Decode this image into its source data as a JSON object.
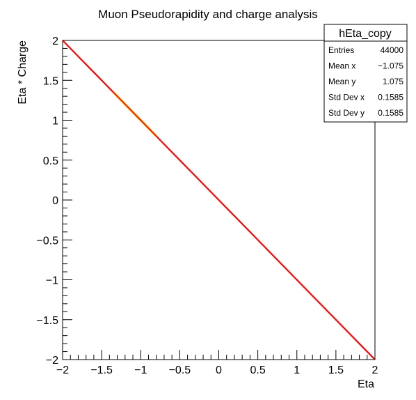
{
  "chart_data": {
    "type": "heatmap",
    "title": "Muon Pseudorapidity and charge analysis",
    "xlabel": "Eta",
    "ylabel": "Eta * Charge",
    "xlim": [
      -2,
      2
    ],
    "ylim": [
      -2,
      2
    ],
    "x_ticks": [
      -2,
      -1.5,
      -1,
      -0.5,
      0,
      0.5,
      1,
      1.5,
      2
    ],
    "y_ticks": [
      -2,
      -1.5,
      -1,
      -0.5,
      0,
      0.5,
      1,
      1.5,
      2
    ],
    "x_tick_labels": [
      "−2",
      "−1.5",
      "−1",
      "−0.5",
      "0",
      "0.5",
      "1",
      "1.5",
      "2"
    ],
    "y_tick_labels": [
      "−2",
      "−1.5",
      "−1",
      "−0.5",
      "0",
      "0.5",
      "1",
      "1.5",
      "2"
    ],
    "grid": false,
    "series": [
      {
        "line_from": [
          -2,
          2
        ],
        "line_to": [
          2,
          -2
        ],
        "color": "#ff0000"
      }
    ],
    "hotspot": {
      "x_range": [
        -1.35,
        -0.8
      ],
      "color": "#ffa500"
    },
    "stats_box": {
      "name": "hEta_copy",
      "placement": "top-right",
      "rows": [
        {
          "label": "Entries",
          "value": "44000"
        },
        {
          "label": "Mean x",
          "value": "−1.075"
        },
        {
          "label": "Mean y",
          "value": "1.075"
        },
        {
          "label": "Std Dev x",
          "value": "0.1585"
        },
        {
          "label": "Std Dev y",
          "value": "0.1585"
        }
      ]
    }
  }
}
